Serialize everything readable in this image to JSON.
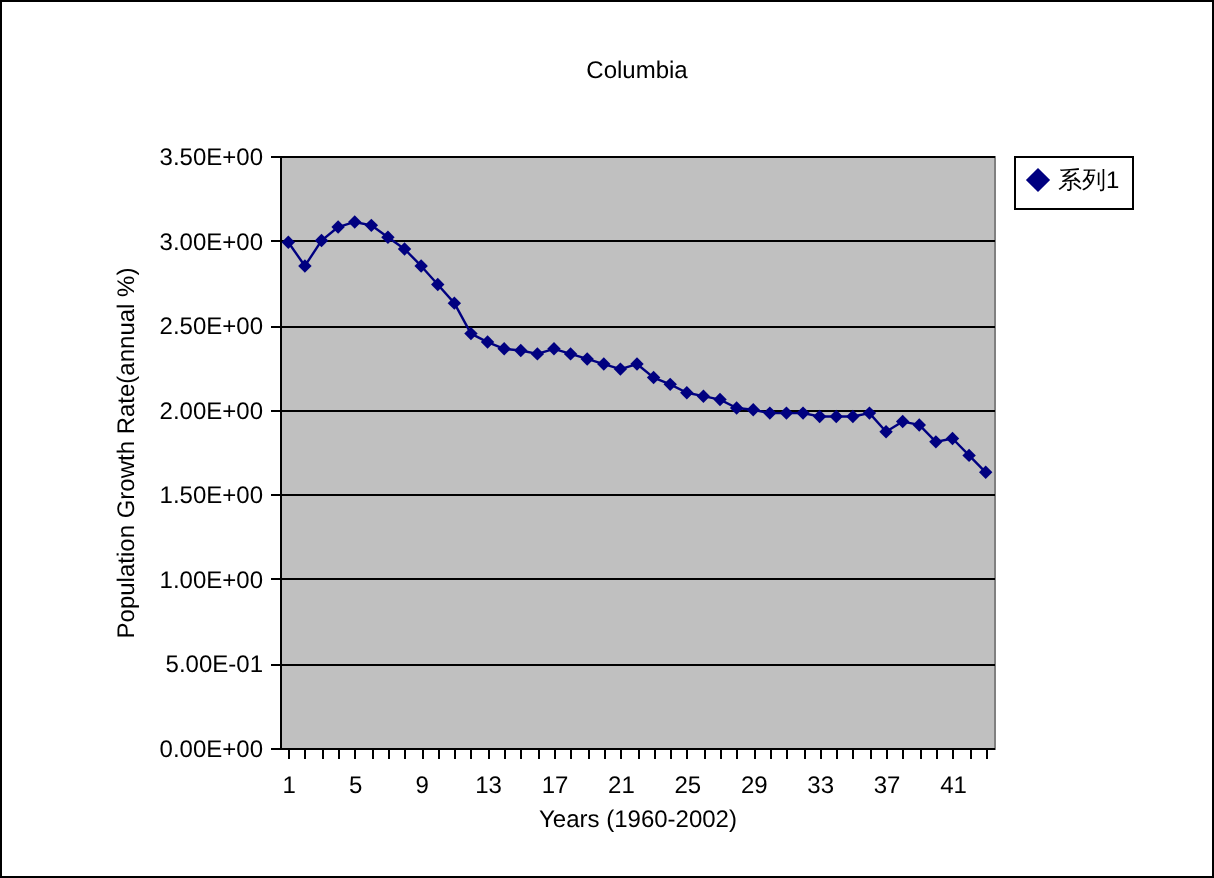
{
  "chart_data": {
    "type": "line",
    "title": "Columbia",
    "xlabel": "Years (1960-2002)",
    "ylabel": "Population Growth Rate(annual %)",
    "categories": [
      "1",
      null,
      null,
      null,
      "5",
      null,
      null,
      null,
      "9",
      null,
      null,
      null,
      "13",
      null,
      null,
      null,
      "17",
      null,
      null,
      null,
      "21",
      null,
      null,
      null,
      "25",
      null,
      null,
      null,
      "29",
      null,
      null,
      null,
      "33",
      null,
      null,
      null,
      "37",
      null,
      null,
      null,
      "41",
      null,
      null
    ],
    "series": [
      {
        "name": "系列1",
        "color": "#000080",
        "values": [
          2.99,
          2.85,
          3.0,
          3.08,
          3.11,
          3.09,
          3.02,
          2.95,
          2.85,
          2.74,
          2.63,
          2.45,
          2.4,
          2.36,
          2.35,
          2.33,
          2.36,
          2.33,
          2.3,
          2.27,
          2.24,
          2.27,
          2.19,
          2.15,
          2.1,
          2.08,
          2.06,
          2.01,
          2.0,
          1.98,
          1.98,
          1.98,
          1.96,
          1.96,
          1.96,
          1.98,
          1.87,
          1.93,
          1.91,
          1.81,
          1.83,
          1.73,
          1.63
        ]
      }
    ],
    "ylim": [
      0,
      3.5
    ],
    "yticks": [
      {
        "value": 0,
        "label": "0.00E+00"
      },
      {
        "value": 0.5,
        "label": "5.00E-01"
      },
      {
        "value": 1,
        "label": "1.00E+00"
      },
      {
        "value": 1.5,
        "label": "1.50E+00"
      },
      {
        "value": 2,
        "label": "2.00E+00"
      },
      {
        "value": 2.5,
        "label": "2.50E+00"
      },
      {
        "value": 3,
        "label": "3.00E+00"
      },
      {
        "value": 3.5,
        "label": "3.50E+00"
      }
    ],
    "grid": "y",
    "legend": "right",
    "marker": "diamond",
    "line_style": "solid"
  }
}
